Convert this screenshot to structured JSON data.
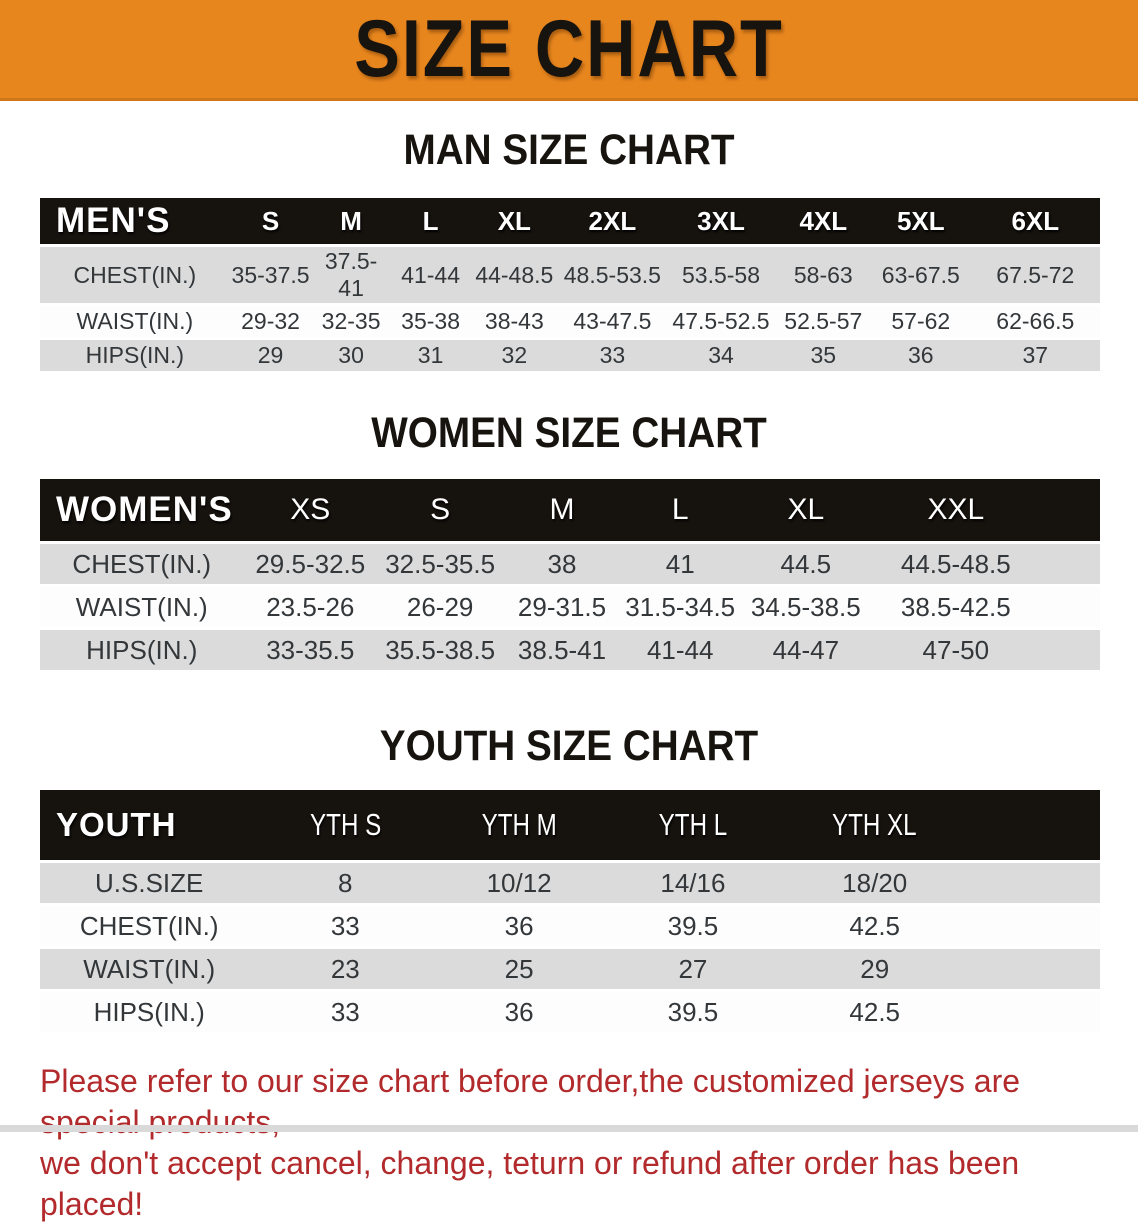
{
  "banner": {
    "title": "SIZE CHART",
    "bg_color": "#E8861E",
    "text_color": "#17130e"
  },
  "sections": [
    {
      "id": "men",
      "heading": "MAN SIZE CHART",
      "corner": "MEN'S",
      "sizes": [
        "S",
        "M",
        "L",
        "XL",
        "2XL",
        "3XL",
        "4XL",
        "5XL",
        "6XL"
      ],
      "rows": [
        {
          "label": "CHEST(IN.)",
          "values": [
            "35-37.5",
            "37.5-41",
            "41-44",
            "44-48.5",
            "48.5-53.5",
            "53.5-58",
            "58-63",
            "63-67.5",
            "67.5-72"
          ]
        },
        {
          "label": "WAIST(IN.)",
          "values": [
            "29-32",
            "32-35",
            "35-38",
            "38-43",
            "43-47.5",
            "47.5-52.5",
            "52.5-57",
            "57-62",
            "62-66.5"
          ]
        },
        {
          "label": "HIPS(IN.)",
          "values": [
            "29",
            "30",
            "31",
            "32",
            "33",
            "34",
            "35",
            "36",
            "37"
          ]
        }
      ]
    },
    {
      "id": "women",
      "heading": "WOMEN SIZE CHART",
      "corner": "WOMEN'S",
      "sizes": [
        "XS",
        "S",
        "M",
        "L",
        "XL",
        "XXL"
      ],
      "rows": [
        {
          "label": "CHEST(IN.)",
          "values": [
            "29.5-32.5",
            "32.5-35.5",
            "38",
            "41",
            "44.5",
            "44.5-48.5"
          ]
        },
        {
          "label": "WAIST(IN.)",
          "values": [
            "23.5-26",
            "26-29",
            "29-31.5",
            "31.5-34.5",
            "34.5-38.5",
            "38.5-42.5"
          ]
        },
        {
          "label": "HIPS(IN.)",
          "values": [
            "33-35.5",
            "35.5-38.5",
            "38.5-41",
            "41-44",
            "44-47",
            "47-50"
          ]
        }
      ]
    },
    {
      "id": "youth",
      "heading": "YOUTH SIZE CHART",
      "corner": "YOUTH",
      "sizes": [
        "YTH S",
        "YTH M",
        "YTH L",
        "YTH XL"
      ],
      "rows": [
        {
          "label": "U.S.SIZE",
          "values": [
            "8",
            "10/12",
            "14/16",
            "18/20"
          ]
        },
        {
          "label": "CHEST(IN.)",
          "values": [
            "33",
            "36",
            "39.5",
            "42.5"
          ]
        },
        {
          "label": "WAIST(IN.)",
          "values": [
            "23",
            "25",
            "27",
            "29"
          ]
        },
        {
          "label": "HIPS(IN.)",
          "values": [
            "33",
            "36",
            "39.5",
            "42.5"
          ]
        }
      ]
    }
  ],
  "note": {
    "line1": "Please refer to our size chart before order,the customized jerseys are special products,",
    "line2": "we don't accept cancel, change, teturn or refund after order has been placed!",
    "color": "#B22A2C"
  },
  "colors": {
    "header_bar": "#16120e",
    "row_gray": "#DBDBDB",
    "row_white": "#FDFDFD"
  }
}
